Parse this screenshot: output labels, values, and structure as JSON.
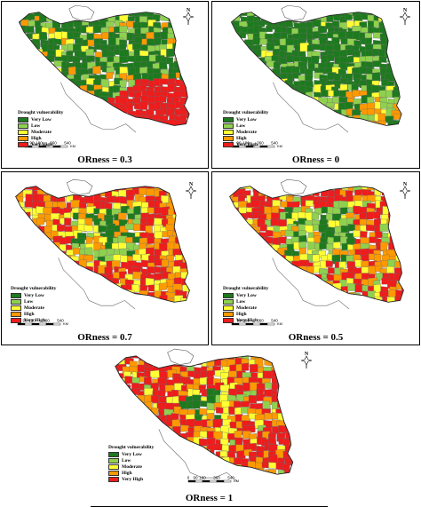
{
  "legend": {
    "title": "Drought vulnerability",
    "classes": [
      {
        "label": "Very Low",
        "color": "#1e7a1e"
      },
      {
        "label": "Low",
        "color": "#8fd14f"
      },
      {
        "label": "Moderate",
        "color": "#ffff33"
      },
      {
        "label": "High",
        "color": "#ff9900"
      },
      {
        "label": "Very High",
        "color": "#ee1c1c"
      }
    ]
  },
  "scale": {
    "ticks": [
      "0",
      "90",
      "180",
      "360",
      "540"
    ],
    "unit": "KM"
  },
  "north_arrow": {
    "letter": "N",
    "icon": "north-arrow-icon"
  },
  "panels": [
    {
      "caption": "ORness = 0.3",
      "dominant": [
        "#1e7a1e",
        "#8fd14f",
        "#ee1c1c"
      ]
    },
    {
      "caption": "ORness = 0",
      "dominant": [
        "#1e7a1e",
        "#8fd14f",
        "#ff9900"
      ]
    },
    {
      "caption": "ORness = 0.7",
      "dominant": [
        "#ee1c1c",
        "#ff9900",
        "#ffff33"
      ]
    },
    {
      "caption": "ORness = 0.5",
      "dominant": [
        "#ee1c1c",
        "#ff9900",
        "#8fd14f"
      ]
    },
    {
      "caption": "ORness = 1",
      "dominant": [
        "#ee1c1c",
        "#ff9900",
        "#ffff33"
      ]
    }
  ]
}
